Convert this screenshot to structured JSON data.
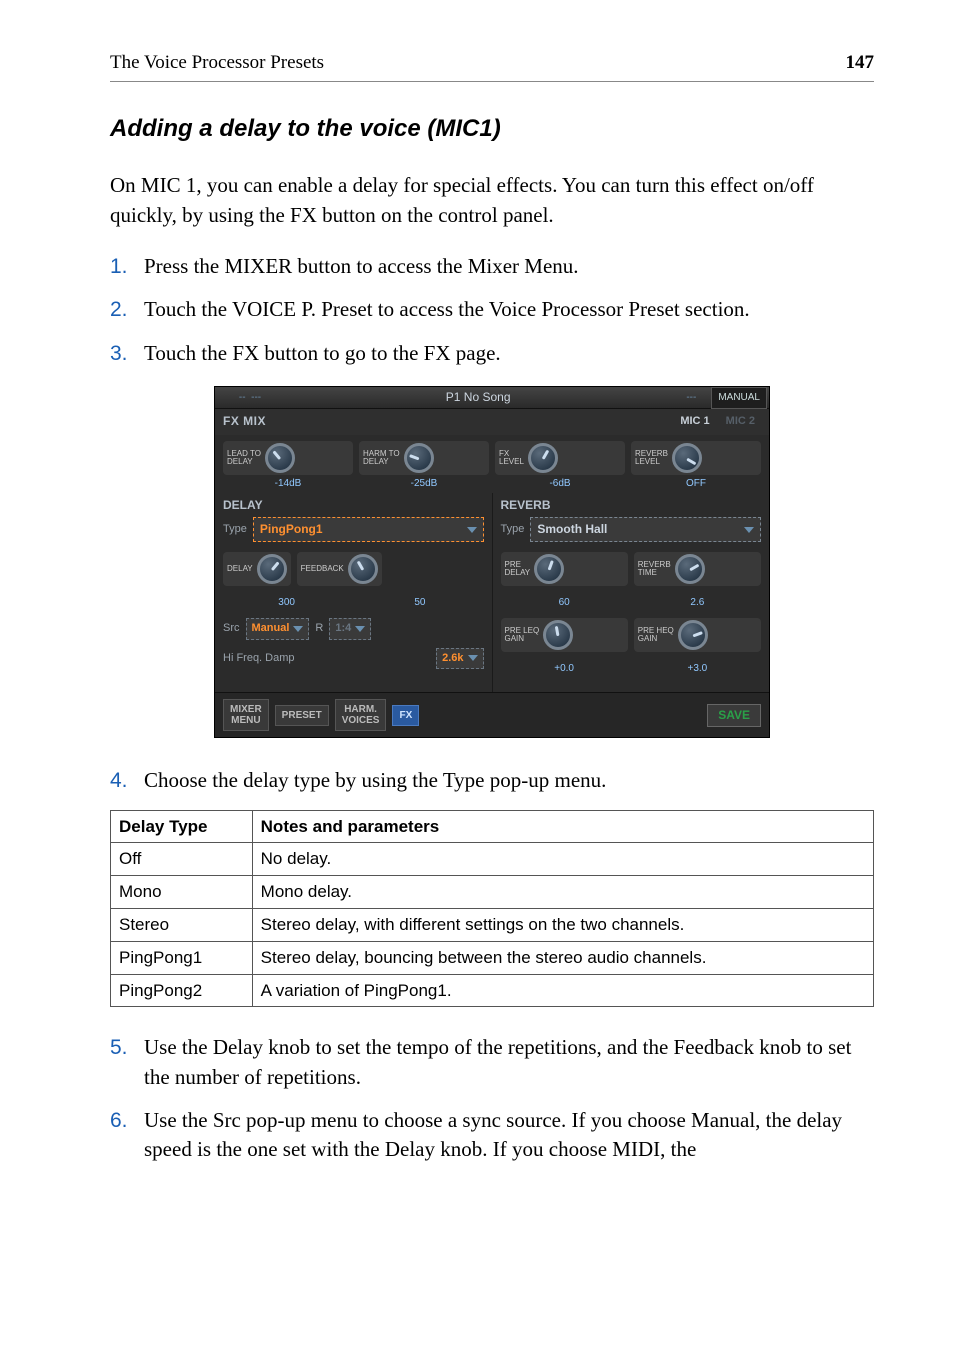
{
  "header": {
    "left": "The Voice Processor Presets",
    "page": "147"
  },
  "title": "Adding a delay to the voice (MIC1)",
  "intro": "On MIC 1, you can enable a delay for special effects. You can turn this effect on/off quickly, by using the FX button on the control panel.",
  "steps_top": [
    "Press the MIXER button to access the Mixer Menu.",
    "Touch the VOICE P. Preset to access the Voice Processor Preset section.",
    "Touch the FX button to go to the FX page."
  ],
  "step4": "Choose the delay type by using the Type pop-up menu.",
  "steps_bottom": [
    "Use the Delay knob to set the tempo of the repetitions, and the Feedback knob to set the number of repetitions.",
    "Use the Src pop-up menu to choose a sync source. If you choose Manual, the delay speed is the one set with the Delay knob. If you choose MIDI, the"
  ],
  "device": {
    "titlebar": {
      "title": "P1 No Song",
      "manual": "MANUAL"
    },
    "fxmix_label": "FX MIX",
    "mic_tabs": [
      "MIC 1",
      "MIC 2"
    ],
    "top_knobs": [
      {
        "label": "LEAD TO\nDELAY",
        "value": "-14dB"
      },
      {
        "label": "HARM TO\nDELAY",
        "value": "-25dB"
      },
      {
        "label": "FX\nLEVEL",
        "value": "-6dB"
      },
      {
        "label": "REVERB\nLEVEL",
        "value": "OFF"
      }
    ],
    "delay": {
      "title": "DELAY",
      "type_label": "Type",
      "type_value": "PingPong1",
      "knobA_label": "DELAY",
      "knobA_value": "300",
      "knobB_label": "FEEDBACK",
      "knobB_value": "50",
      "src_label": "Src",
      "src_value": "Manual",
      "r_label": "R",
      "r_value": "1:4",
      "hf_label": "Hi Freq. Damp",
      "hf_value": "2.6k"
    },
    "reverb": {
      "title": "REVERB",
      "type_label": "Type",
      "type_value": "Smooth Hall",
      "k1_label": "PRE\nDELAY",
      "k1_value": "60",
      "k2_label": "REVERB\nTIME",
      "k2_value": "2.6",
      "k3_label": "PRE LEQ\nGAIN",
      "k3_value": "+0.0",
      "k4_label": "PRE HEQ\nGAIN",
      "k4_value": "+3.0"
    },
    "bottom": {
      "mixer": "MIXER\nMENU",
      "preset": "PRESET",
      "harm": "HARM.\nVOICES",
      "fx": "FX",
      "save": "SAVE"
    }
  },
  "table": {
    "headers": [
      "Delay Type",
      "Notes and parameters"
    ],
    "rows": [
      [
        "Off",
        "No delay."
      ],
      [
        "Mono",
        "Mono delay."
      ],
      [
        "Stereo",
        "Stereo delay, with different settings on the two channels."
      ],
      [
        "PingPong1",
        "Stereo delay, bouncing between the stereo audio channels."
      ],
      [
        "PingPong2",
        "A variation of PingPong1."
      ]
    ]
  }
}
